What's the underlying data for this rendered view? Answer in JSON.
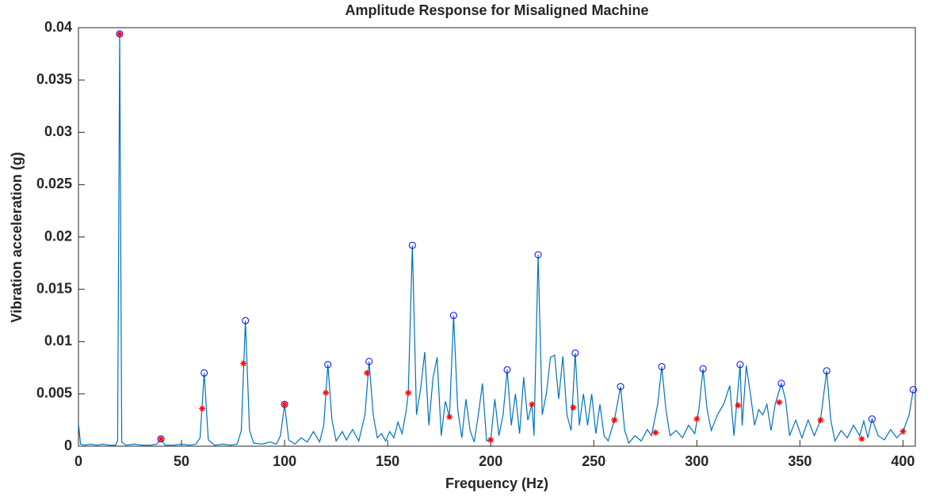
{
  "chart_data": {
    "type": "line",
    "title": "Amplitude Response for Misaligned Machine",
    "x_label": "Frequency (Hz)",
    "y_label": "Vibration acceleration (g)",
    "xlim": [
      0,
      406
    ],
    "xticks": [
      0,
      50,
      100,
      150,
      200,
      250,
      300,
      350,
      400
    ],
    "ylim": [
      0,
      0.04
    ],
    "yticks": [
      0,
      0.005,
      0.01,
      0.015,
      0.02,
      0.025,
      0.03,
      0.035,
      0.04
    ],
    "grid": false,
    "box": true,
    "series": [
      {
        "style": "line",
        "color": "#0072bd",
        "x": [
          0,
          1,
          3,
          6,
          9,
          12,
          15,
          18,
          19,
          20,
          21,
          23,
          27,
          31,
          35,
          38,
          40,
          42,
          46,
          50,
          54,
          57,
          59,
          61,
          63,
          66,
          70,
          74,
          77,
          79,
          81,
          83,
          85,
          89,
          93,
          96,
          98,
          100,
          102,
          105,
          108,
          111,
          114,
          117,
          119,
          121,
          123,
          125,
          128,
          130,
          133,
          136,
          139,
          141,
          143,
          145,
          147,
          149,
          151,
          153,
          155,
          157,
          159,
          160,
          162,
          164,
          166,
          168,
          170,
          172,
          174,
          176,
          178,
          180,
          182,
          184,
          186,
          188,
          190,
          192,
          194,
          196,
          198,
          200,
          202,
          204,
          206,
          208,
          210,
          212,
          214,
          216,
          218,
          220,
          221,
          223,
          225,
          227,
          229,
          231,
          233,
          235,
          237,
          239,
          241,
          243,
          245,
          247,
          249,
          251,
          253,
          255,
          257,
          260,
          263,
          265,
          267,
          270,
          273,
          276,
          278,
          281,
          283,
          285,
          287,
          290,
          293,
          296,
          299,
          301,
          303,
          305,
          307,
          310,
          313,
          316,
          318,
          321,
          322,
          324,
          326,
          328,
          330,
          332,
          334,
          336,
          338,
          341,
          343,
          345,
          348,
          351,
          354,
          357,
          360,
          363,
          365,
          367,
          370,
          373,
          376,
          379,
          381,
          383,
          385,
          388,
          391,
          394,
          397,
          400,
          403,
          405
        ],
        "values": [
          0.0022,
          0.0002,
          0.0001,
          0.0002,
          0.0001,
          0.0002,
          0.0001,
          0.0001,
          0.0005,
          0.0394,
          0.0004,
          0.0001,
          0.0002,
          0.0001,
          0.0001,
          0.0002,
          0.0007,
          0.0001,
          0.0001,
          0.0002,
          0.0001,
          0.0002,
          0.0008,
          0.007,
          0.0006,
          0.0001,
          0.0002,
          0.0001,
          0.0002,
          0.0015,
          0.012,
          0.0015,
          0.0003,
          0.0002,
          0.0004,
          0.0002,
          0.001,
          0.004,
          0.0006,
          0.0002,
          0.0008,
          0.0004,
          0.0014,
          0.0004,
          0.002,
          0.0078,
          0.0025,
          0.0005,
          0.0014,
          0.0006,
          0.0016,
          0.0005,
          0.003,
          0.0081,
          0.003,
          0.0008,
          0.0012,
          0.0005,
          0.0014,
          0.0008,
          0.0023,
          0.0012,
          0.0034,
          0.0051,
          0.0192,
          0.003,
          0.0055,
          0.009,
          0.002,
          0.0065,
          0.0085,
          0.001,
          0.0043,
          0.0028,
          0.0125,
          0.0035,
          0.0008,
          0.0045,
          0.0015,
          0.0004,
          0.003,
          0.006,
          0.0005,
          0.0006,
          0.0045,
          0.001,
          0.003,
          0.0073,
          0.002,
          0.005,
          0.0012,
          0.0066,
          0.0025,
          0.004,
          0.001,
          0.0183,
          0.003,
          0.005,
          0.0085,
          0.0087,
          0.0045,
          0.0086,
          0.003,
          0.0015,
          0.0089,
          0.002,
          0.005,
          0.002,
          0.005,
          0.0012,
          0.004,
          0.001,
          0.0005,
          0.0025,
          0.0057,
          0.0015,
          0.0003,
          0.001,
          0.0005,
          0.0016,
          0.001,
          0.004,
          0.0076,
          0.0035,
          0.001,
          0.0015,
          0.0008,
          0.002,
          0.0012,
          0.0035,
          0.0074,
          0.0035,
          0.0015,
          0.003,
          0.004,
          0.0058,
          0.001,
          0.0078,
          0.002,
          0.0077,
          0.005,
          0.002,
          0.0035,
          0.003,
          0.004,
          0.0015,
          0.004,
          0.006,
          0.0045,
          0.001,
          0.0025,
          0.0008,
          0.0025,
          0.001,
          0.0025,
          0.0072,
          0.0025,
          0.0005,
          0.0015,
          0.0008,
          0.002,
          0.001,
          0.0024,
          0.0008,
          0.0026,
          0.001,
          0.0006,
          0.0016,
          0.0008,
          0.0014,
          0.003,
          0.0054
        ]
      },
      {
        "style": "circle",
        "color": "#0000ff",
        "x": [
          20,
          40,
          61,
          81,
          100,
          121,
          141,
          162,
          182,
          208,
          223,
          241,
          263,
          283,
          303,
          321,
          341,
          363,
          385,
          405
        ],
        "values": [
          0.0394,
          0.0007,
          0.007,
          0.012,
          0.004,
          0.0078,
          0.0081,
          0.0192,
          0.0125,
          0.0073,
          0.0183,
          0.0089,
          0.0057,
          0.0076,
          0.0074,
          0.0078,
          0.006,
          0.0072,
          0.0026,
          0.0054
        ]
      },
      {
        "style": "asterisk",
        "color": "#ff0000",
        "x": [
          20,
          40,
          60,
          80,
          100,
          120,
          140,
          160,
          180,
          200,
          220,
          240,
          260,
          280,
          300,
          320,
          340,
          360,
          380,
          400
        ],
        "values": [
          0.0394,
          0.0007,
          0.0036,
          0.0079,
          0.004,
          0.0051,
          0.007,
          0.0051,
          0.0028,
          0.0006,
          0.004,
          0.0037,
          0.0025,
          0.0013,
          0.0026,
          0.0039,
          0.0042,
          0.0025,
          0.0007,
          0.0014
        ]
      }
    ]
  }
}
